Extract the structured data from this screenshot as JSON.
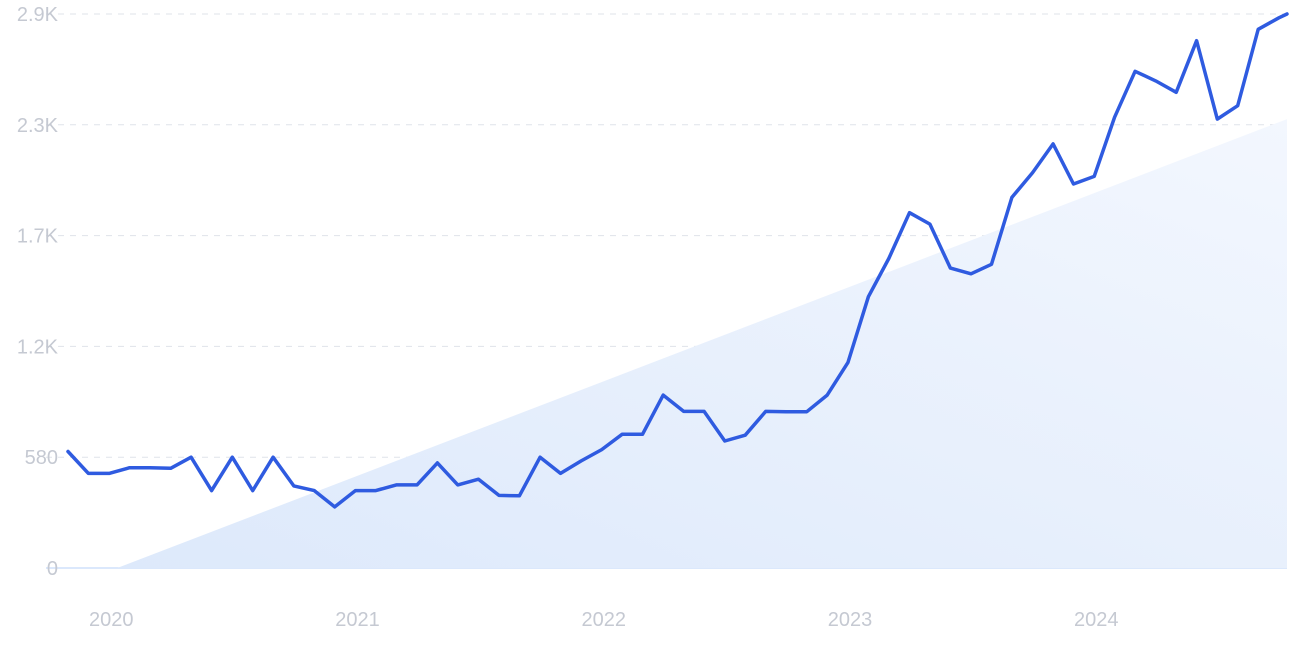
{
  "chart_data": {
    "type": "line",
    "title": "",
    "xlabel": "",
    "ylabel": "",
    "y_ticks": [
      {
        "value": 0,
        "label": "0"
      },
      {
        "value": 580,
        "label": "580"
      },
      {
        "value": 1160,
        "label": "1.2K"
      },
      {
        "value": 1740,
        "label": "1.7K"
      },
      {
        "value": 2320,
        "label": "2.3K"
      },
      {
        "value": 2900,
        "label": "2.9K"
      }
    ],
    "x_ticks": [
      {
        "value": 2020.0,
        "label": "2020"
      },
      {
        "value": 2021.0,
        "label": "2021"
      },
      {
        "value": 2022.0,
        "label": "2022"
      },
      {
        "value": 2023.0,
        "label": "2023"
      },
      {
        "value": 2024.0,
        "label": "2024"
      }
    ],
    "xlim": [
      2019.8,
      2024.75
    ],
    "ylim": [
      0,
      2900
    ],
    "grid": true,
    "series": [
      {
        "color": "#2f5be0",
        "x": [
          2019.8,
          2019.883,
          2019.967,
          2020.05,
          2020.133,
          2020.217,
          2020.3,
          2020.383,
          2020.467,
          2020.55,
          2020.633,
          2020.717,
          2020.8,
          2020.883,
          2020.967,
          2021.05,
          2021.133,
          2021.217,
          2021.3,
          2021.383,
          2021.467,
          2021.55,
          2021.633,
          2021.717,
          2021.8,
          2021.883,
          2021.967,
          2022.05,
          2022.133,
          2022.217,
          2022.3,
          2022.383,
          2022.467,
          2022.55,
          2022.633,
          2022.717,
          2022.8,
          2022.883,
          2022.967,
          2023.05,
          2023.133,
          2023.217,
          2023.3,
          2023.383,
          2023.467,
          2023.55,
          2023.633,
          2023.717,
          2023.8,
          2023.883,
          2023.967,
          2024.05,
          2024.133,
          2024.217,
          2024.3,
          2024.383,
          2024.467,
          2024.55,
          2024.633,
          2024.717,
          2024.75
        ],
        "values": [
          610,
          495,
          495,
          525,
          525,
          522,
          580,
          405,
          580,
          405,
          580,
          430,
          405,
          320,
          405,
          405,
          435,
          435,
          550,
          435,
          465,
          380,
          378,
          580,
          495,
          560,
          620,
          700,
          700,
          905,
          820,
          820,
          665,
          695,
          820,
          818,
          818,
          905,
          1075,
          1420,
          1620,
          1860,
          1800,
          1570,
          1540,
          1590,
          1940,
          2070,
          2220,
          2010,
          2050,
          2360,
          2600,
          2550,
          2490,
          2760,
          2350,
          2420,
          2820,
          2880,
          2900
        ]
      }
    ],
    "trend_area": {
      "x": [
        2020.0,
        2024.75
      ],
      "values": [
        0,
        2350
      ],
      "color": "#e3edfc"
    }
  }
}
